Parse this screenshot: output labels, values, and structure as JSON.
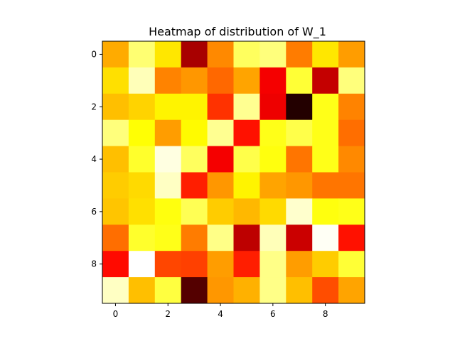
{
  "chart_data": {
    "type": "heatmap",
    "title": "Heatmap of distribution of W_1",
    "xlabel": "",
    "ylabel": "",
    "colormap": "hot",
    "value_range": [
      0,
      1
    ],
    "x_ticks": [
      "0",
      "2",
      "4",
      "6",
      "8"
    ],
    "y_ticks": [
      "0",
      "2",
      "4",
      "6",
      "8"
    ],
    "rows": 10,
    "cols": 10,
    "values": [
      [
        0.62,
        0.86,
        0.71,
        0.24,
        0.57,
        0.84,
        0.87,
        0.55,
        0.71,
        0.6
      ],
      [
        0.7,
        0.93,
        0.56,
        0.59,
        0.52,
        0.61,
        0.35,
        0.8,
        0.28,
        0.87
      ],
      [
        0.65,
        0.68,
        0.73,
        0.73,
        0.44,
        0.89,
        0.34,
        0.05,
        0.77,
        0.56
      ],
      [
        0.87,
        0.75,
        0.6,
        0.74,
        0.89,
        0.39,
        0.77,
        0.82,
        0.77,
        0.53
      ],
      [
        0.65,
        0.79,
        0.97,
        0.84,
        0.35,
        0.82,
        0.76,
        0.54,
        0.77,
        0.57
      ],
      [
        0.67,
        0.69,
        0.94,
        0.41,
        0.59,
        0.73,
        0.61,
        0.59,
        0.54,
        0.54
      ],
      [
        0.66,
        0.7,
        0.76,
        0.83,
        0.67,
        0.64,
        0.69,
        0.95,
        0.76,
        0.77
      ],
      [
        0.53,
        0.79,
        0.77,
        0.55,
        0.88,
        0.27,
        0.93,
        0.29,
        0.99,
        0.39
      ],
      [
        0.38,
        1.0,
        0.47,
        0.46,
        0.6,
        0.41,
        0.88,
        0.6,
        0.67,
        0.8
      ],
      [
        0.94,
        0.65,
        0.81,
        0.12,
        0.59,
        0.63,
        0.88,
        0.65,
        0.48,
        0.61
      ]
    ]
  }
}
